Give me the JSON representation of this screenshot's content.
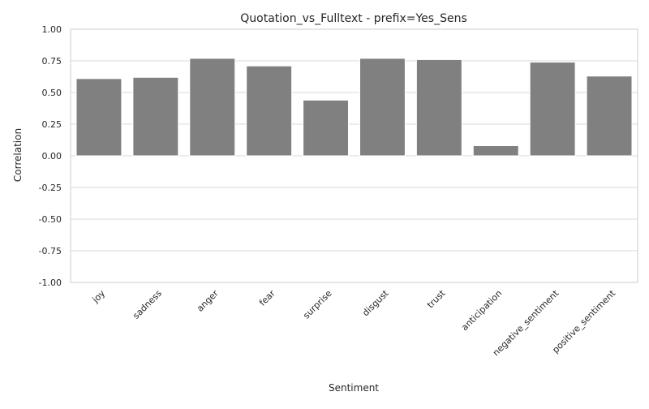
{
  "chart_data": {
    "type": "bar",
    "title": "Quotation_vs_Fulltext - prefix=Yes_Sens",
    "xlabel": "Sentiment",
    "ylabel": "Correlation",
    "ylim": [
      -1.0,
      1.0
    ],
    "yticks": [
      "-1.00",
      "-0.75",
      "-0.50",
      "-0.25",
      "0.00",
      "0.25",
      "0.50",
      "0.75",
      "1.00"
    ],
    "grid": true,
    "categories": [
      "joy",
      "sadness",
      "anger",
      "fear",
      "surprise",
      "disgust",
      "trust",
      "anticipation",
      "negative_sentiment",
      "positive_sentiment"
    ],
    "values": [
      0.61,
      0.62,
      0.77,
      0.71,
      0.44,
      0.77,
      0.76,
      0.08,
      0.74,
      0.63
    ],
    "bar_color": "#808080",
    "grid_color": "#d9d9d9",
    "frame_color": "#cccccc"
  }
}
